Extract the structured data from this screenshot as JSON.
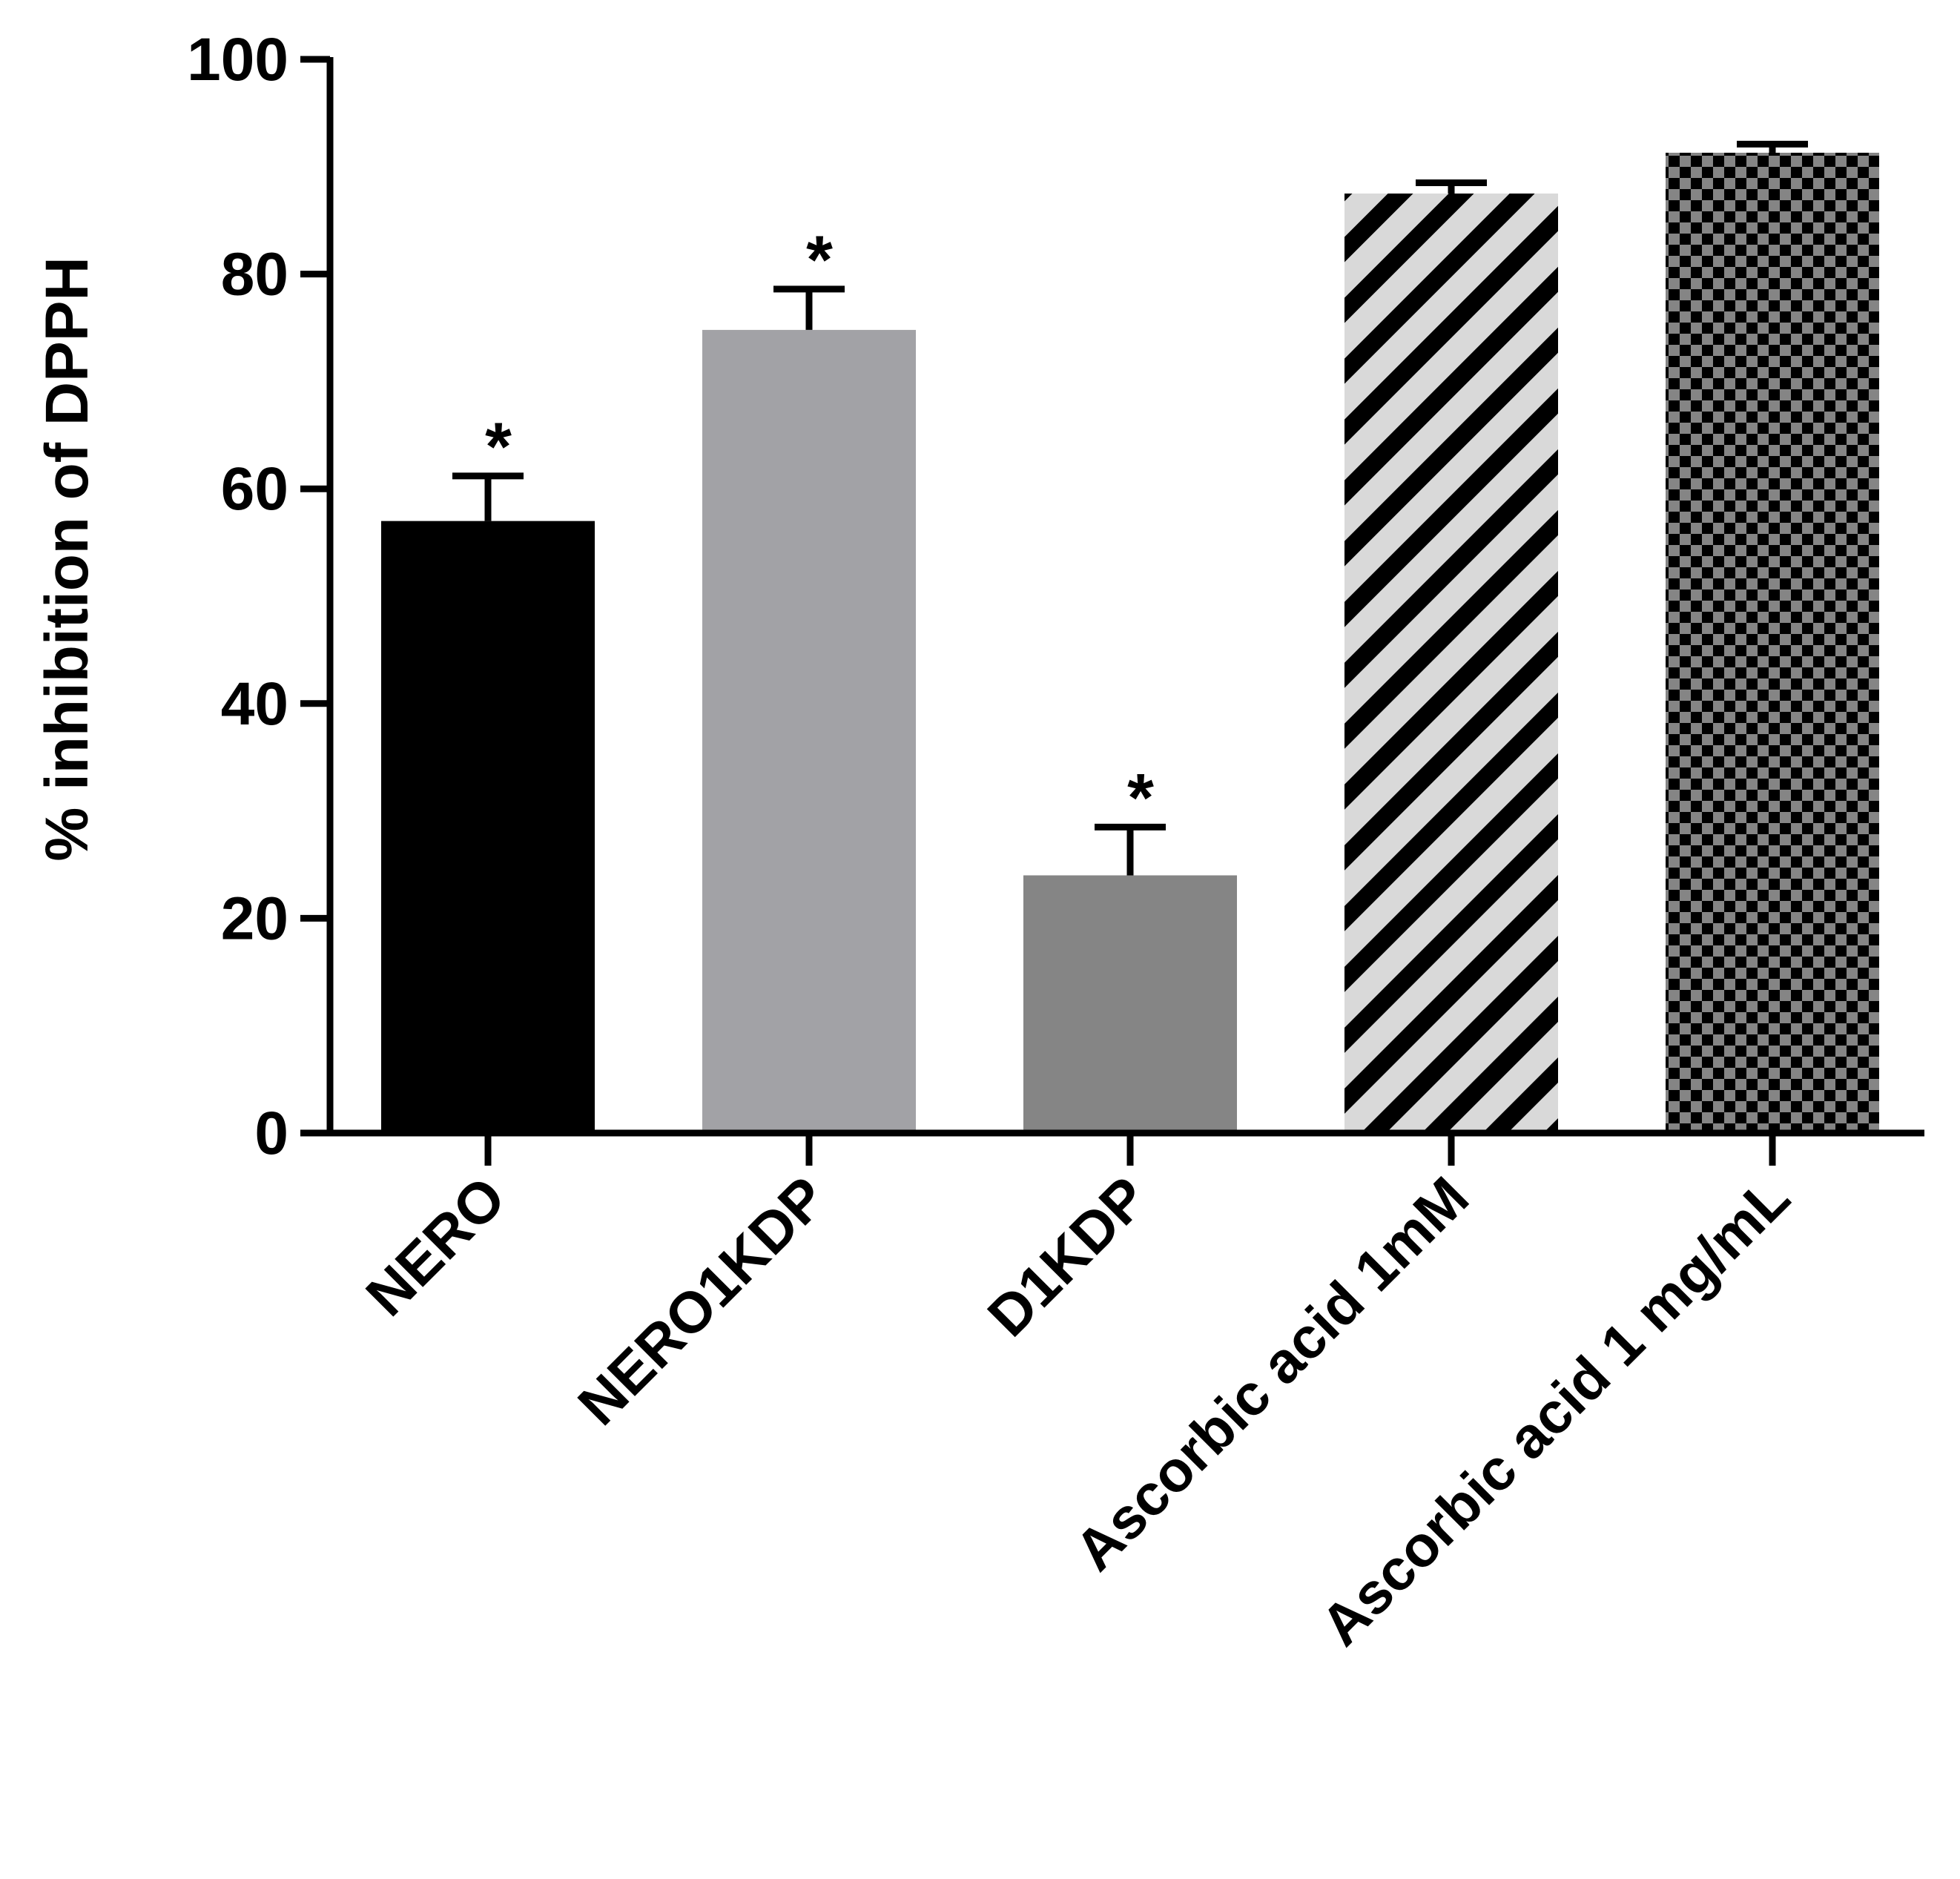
{
  "chart_data": {
    "type": "bar",
    "title": "",
    "xlabel": "",
    "ylabel": "% inhibition of DPPH",
    "ylim": [
      0,
      100
    ],
    "yticks": [
      0,
      20,
      40,
      60,
      80,
      100
    ],
    "ytick_labels": [
      "0",
      "20",
      "40",
      "60",
      "80",
      "100"
    ],
    "categories": [
      "NERO",
      "NERO1KDP",
      "D1KDP",
      "Ascorbic acid 1mM",
      "Ascorbic acid 1 mg/mL"
    ],
    "values": [
      57.0,
      74.8,
      24.0,
      87.5,
      91.3
    ],
    "errors": [
      4.2,
      3.8,
      4.5,
      1.0,
      0.8
    ],
    "significance": [
      "*",
      "*",
      "*",
      "",
      ""
    ],
    "fills": [
      {
        "pattern": "solid",
        "color": "#000000"
      },
      {
        "pattern": "solid",
        "color": "#a2a2a6"
      },
      {
        "pattern": "solid",
        "color": "#858585"
      },
      {
        "pattern": "diagonal-stripes",
        "color": "#000000",
        "background": "#d9d9d9"
      },
      {
        "pattern": "checkerboard",
        "color": "#000000",
        "background": "#858585"
      }
    ],
    "grid": false,
    "legend": "none"
  }
}
